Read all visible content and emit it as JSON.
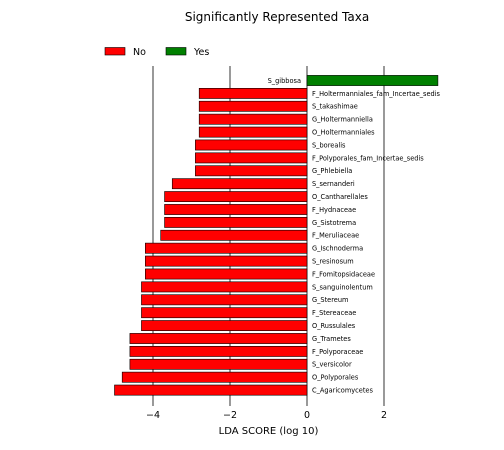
{
  "chart_data": {
    "type": "bar",
    "orientation": "horizontal",
    "title": "Significantly Represented Taxa",
    "xlabel": "LDA SCORE (log 10)",
    "ylabel": "",
    "xlim": [
      -5,
      3.5
    ],
    "xticks": [
      -4,
      -2,
      0,
      2
    ],
    "xtick_labels": [
      "−4",
      "−2",
      "0",
      "2"
    ],
    "grid_x": true,
    "legend_position": "top-left",
    "legend": [
      {
        "label": "No",
        "color": "#ff0000"
      },
      {
        "label": "Yes",
        "color": "#008000"
      }
    ],
    "categories": [
      "S_gibbosa",
      "F_Holtermanniales_fam_Incertae_sedis",
      "S_takashimae",
      "G_Holtermanniella",
      "O_Holtermanniales",
      "S_borealis",
      "F_Polyporales_fam_Incertae_sedis",
      "G_Phlebiella",
      "S_sernanderi",
      "O_Cantharellales",
      "F_Hydnaceae",
      "G_Sistotrema",
      "F_Meruliaceae",
      "G_Ischnoderma",
      "S_resinosum",
      "F_Fomitopsidaceae",
      "S_sanguinolentum",
      "G_Stereum",
      "F_Stereaceae",
      "O_Russulales",
      "G_Trametes",
      "F_Polyporaceae",
      "S_versicolor",
      "O_Polyporales",
      "C_Agaricomycetes"
    ],
    "values": [
      3.4,
      -2.8,
      -2.8,
      -2.8,
      -2.8,
      -2.9,
      -2.9,
      -2.9,
      -3.5,
      -3.7,
      -3.7,
      -3.7,
      -3.8,
      -4.2,
      -4.2,
      -4.2,
      -4.3,
      -4.3,
      -4.3,
      -4.3,
      -4.6,
      -4.6,
      -4.6,
      -4.8,
      -5.0
    ],
    "groups": [
      "Yes",
      "No",
      "No",
      "No",
      "No",
      "No",
      "No",
      "No",
      "No",
      "No",
      "No",
      "No",
      "No",
      "No",
      "No",
      "No",
      "No",
      "No",
      "No",
      "No",
      "No",
      "No",
      "No",
      "No",
      "No"
    ]
  }
}
